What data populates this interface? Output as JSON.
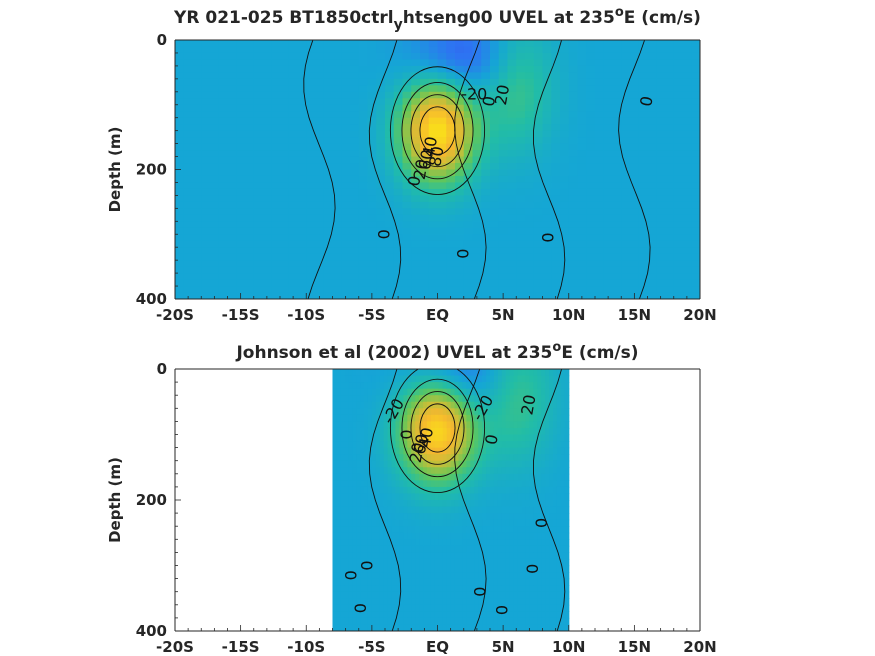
{
  "chart_data": [
    {
      "type": "heatmap",
      "title": "YR 021-025 BT1850ctrl",
      "title_sub": "y",
      "title_mid": "htseng00 UVEL at 235",
      "title_sup": "o",
      "title_end": "E (cm/s)",
      "ylabel": "Depth (m)",
      "xlim": [
        -20,
        20
      ],
      "ylim": [
        0,
        400
      ],
      "y_reversed": true,
      "xticks": [
        -20,
        -15,
        -10,
        -5,
        0,
        5,
        10,
        15,
        20
      ],
      "xtick_labels": [
        "-20S",
        "-15S",
        "-10S",
        "-5S",
        "EQ",
        "5N",
        "10N",
        "15N",
        "20N"
      ],
      "yticks": [
        0,
        200,
        400
      ],
      "ytick_labels": [
        "0",
        "200",
        "400"
      ],
      "data_extent": [
        -20,
        20
      ],
      "colormap": [
        "#3e26a8",
        "#2e72f3",
        "#15a6d5",
        "#22bda6",
        "#62c759",
        "#c2bf3a",
        "#f6b72f",
        "#f9e119"
      ],
      "features": [
        {
          "kind": "jet",
          "x": 0,
          "depth": 140,
          "speed": 100
        },
        {
          "kind": "westward",
          "x": 2,
          "depth": 30,
          "speed": -30
        },
        {
          "kind": "eastward",
          "x": 6,
          "depth": 70,
          "speed": 30
        }
      ],
      "contour_labels": [
        {
          "text": "-20",
          "x": 2.8,
          "depth": 85,
          "rotate": 0
        },
        {
          "text": "20",
          "x": 5,
          "depth": 85,
          "rotate": -80
        },
        {
          "text": "0",
          "x": 4,
          "depth": 95,
          "rotate": -80
        },
        {
          "text": "0",
          "x": 16,
          "depth": 95,
          "rotate": -80
        },
        {
          "text": "40",
          "x": -0.5,
          "depth": 165,
          "rotate": -80
        },
        {
          "text": "80",
          "x": 0,
          "depth": 180,
          "rotate": -80
        },
        {
          "text": "60",
          "x": -0.8,
          "depth": 185,
          "rotate": -80
        },
        {
          "text": "20",
          "x": -1.2,
          "depth": 200,
          "rotate": -80
        },
        {
          "text": "0",
          "x": -1.7,
          "depth": 218,
          "rotate": -80
        },
        {
          "text": "0",
          "x": -4,
          "depth": 300,
          "rotate": -90
        },
        {
          "text": "0",
          "x": 2,
          "depth": 330,
          "rotate": -90
        },
        {
          "text": "0",
          "x": 8.5,
          "depth": 305,
          "rotate": -90
        }
      ]
    },
    {
      "type": "heatmap",
      "title": "Johnson et al (2002) UVEL at 235",
      "title_sup": "o",
      "title_end": "E (cm/s)",
      "ylabel": "Depth (m)",
      "xlim": [
        -20,
        20
      ],
      "ylim": [
        0,
        400
      ],
      "y_reversed": true,
      "xticks": [
        -20,
        -15,
        -10,
        -5,
        0,
        5,
        10,
        15,
        20
      ],
      "xtick_labels": [
        "-20S",
        "-15S",
        "-10S",
        "-5S",
        "EQ",
        "5N",
        "10N",
        "15N",
        "20N"
      ],
      "yticks": [
        0,
        200,
        400
      ],
      "ytick_labels": [
        "0",
        "200",
        "400"
      ],
      "data_extent": [
        -8,
        10
      ],
      "colormap": [
        "#3e26a8",
        "#2e72f3",
        "#15a6d5",
        "#22bda6",
        "#62c759",
        "#c2bf3a",
        "#f6b72f",
        "#f9e119"
      ],
      "features": [
        {
          "kind": "jet",
          "x": 0,
          "depth": 90,
          "speed": 100
        },
        {
          "kind": "westward",
          "x": 1.5,
          "depth": 15,
          "speed": -30
        },
        {
          "kind": "eastward",
          "x": 6,
          "depth": 40,
          "speed": 30
        }
      ],
      "contour_labels": [
        {
          "text": "-20",
          "x": -3.3,
          "depth": 65,
          "rotate": -60
        },
        {
          "text": "-20",
          "x": 3.5,
          "depth": 60,
          "rotate": -60
        },
        {
          "text": "20",
          "x": 7,
          "depth": 55,
          "rotate": -80
        },
        {
          "text": "0",
          "x": -2.3,
          "depth": 100,
          "rotate": -90
        },
        {
          "text": "0",
          "x": 4.2,
          "depth": 108,
          "rotate": -80
        },
        {
          "text": "40",
          "x": -0.8,
          "depth": 105,
          "rotate": -80
        },
        {
          "text": "60",
          "x": -1.2,
          "depth": 115,
          "rotate": -80
        },
        {
          "text": "20",
          "x": -1.5,
          "depth": 128,
          "rotate": -80
        },
        {
          "text": "0",
          "x": 8,
          "depth": 235,
          "rotate": -90
        },
        {
          "text": "0",
          "x": -6.5,
          "depth": 315,
          "rotate": -90
        },
        {
          "text": "0",
          "x": -5.3,
          "depth": 300,
          "rotate": -90
        },
        {
          "text": "0",
          "x": -5.8,
          "depth": 365,
          "rotate": -90
        },
        {
          "text": "0",
          "x": 3.3,
          "depth": 340,
          "rotate": -90
        },
        {
          "text": "0",
          "x": 7.3,
          "depth": 305,
          "rotate": -90
        },
        {
          "text": "0",
          "x": 5,
          "depth": 368,
          "rotate": -90
        }
      ]
    }
  ]
}
